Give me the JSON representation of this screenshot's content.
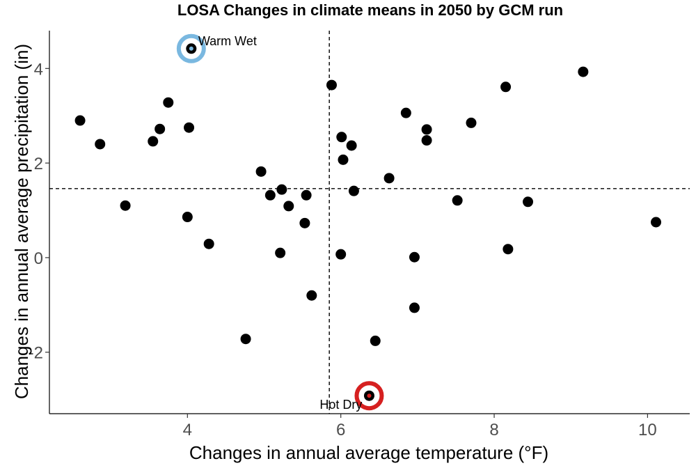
{
  "chart_data": {
    "type": "scatter",
    "title": "LOSA Changes in climate means in 2050 by GCM run",
    "xlabel": "Changes in annual average temperature (°F)",
    "ylabel": "Changes in annual average precipitation (in)",
    "xlim": [
      2.2,
      10.55
    ],
    "ylim": [
      -3.3,
      4.8
    ],
    "xticks": [
      4,
      6,
      8,
      10
    ],
    "yticks": [
      -2,
      0,
      2,
      4
    ],
    "grid": false,
    "reference_lines": {
      "x": 5.85,
      "y": 1.46
    },
    "point_color": "#000000",
    "points": [
      {
        "x": 2.6,
        "y": 2.9
      },
      {
        "x": 2.86,
        "y": 2.4
      },
      {
        "x": 3.19,
        "y": 1.1
      },
      {
        "x": 3.55,
        "y": 2.46
      },
      {
        "x": 3.64,
        "y": 2.72
      },
      {
        "x": 3.75,
        "y": 3.28
      },
      {
        "x": 4.0,
        "y": 0.86
      },
      {
        "x": 4.02,
        "y": 2.75
      },
      {
        "x": 4.05,
        "y": 4.42
      },
      {
        "x": 4.28,
        "y": 0.29
      },
      {
        "x": 4.76,
        "y": -1.72
      },
      {
        "x": 4.96,
        "y": 1.82
      },
      {
        "x": 5.08,
        "y": 1.32
      },
      {
        "x": 5.21,
        "y": 0.1
      },
      {
        "x": 5.23,
        "y": 1.44
      },
      {
        "x": 5.32,
        "y": 1.09
      },
      {
        "x": 5.53,
        "y": 0.73
      },
      {
        "x": 5.55,
        "y": 1.32
      },
      {
        "x": 5.62,
        "y": -0.8
      },
      {
        "x": 5.88,
        "y": 3.65
      },
      {
        "x": 6.0,
        "y": 0.07
      },
      {
        "x": 6.01,
        "y": 2.55
      },
      {
        "x": 6.03,
        "y": 2.07
      },
      {
        "x": 6.14,
        "y": 2.37
      },
      {
        "x": 6.17,
        "y": 1.41
      },
      {
        "x": 6.37,
        "y": -2.92
      },
      {
        "x": 6.45,
        "y": -1.76
      },
      {
        "x": 6.63,
        "y": 1.68
      },
      {
        "x": 6.85,
        "y": 3.06
      },
      {
        "x": 6.96,
        "y": 0.01
      },
      {
        "x": 6.96,
        "y": -1.06
      },
      {
        "x": 7.12,
        "y": 2.71
      },
      {
        "x": 7.12,
        "y": 2.48
      },
      {
        "x": 7.52,
        "y": 1.21
      },
      {
        "x": 7.7,
        "y": 2.85
      },
      {
        "x": 8.15,
        "y": 3.61
      },
      {
        "x": 8.18,
        "y": 0.18
      },
      {
        "x": 8.44,
        "y": 1.18
      },
      {
        "x": 9.16,
        "y": 3.93
      },
      {
        "x": 10.11,
        "y": 0.75
      }
    ],
    "highlights": [
      {
        "label": "Warm Wet",
        "x": 4.05,
        "y": 4.42,
        "ring_color": "#7ab8e0",
        "center_color": "#7ab8e0",
        "label_position": "right"
      },
      {
        "label": "Hot Dry",
        "x": 6.37,
        "y": -2.92,
        "ring_color": "#d62020",
        "center_color": "#d62020",
        "label_position": "left"
      }
    ]
  }
}
